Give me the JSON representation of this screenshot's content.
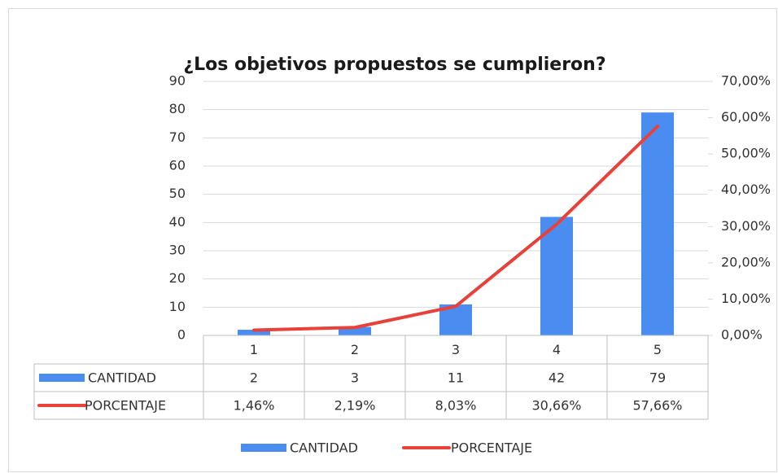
{
  "chart_data": {
    "type": "bar_line_table",
    "title": "¿Los objetivos propuestos se cumplieron?",
    "categories": [
      "1",
      "2",
      "3",
      "4",
      "5"
    ],
    "series": [
      {
        "name": "CANTIDAD",
        "type": "bar",
        "color": "#4a8cf0",
        "values": [
          2,
          3,
          11,
          42,
          79
        ]
      },
      {
        "name": "PORCENTAJE",
        "type": "line",
        "axis": "y2",
        "color": "#e8413a",
        "values": [
          1.46,
          2.19,
          8.03,
          30.66,
          57.66
        ],
        "value_labels": [
          "1,46%",
          "2,19%",
          "8,03%",
          "30,66%",
          "57,66%"
        ]
      }
    ],
    "ylim": [
      0,
      90
    ],
    "yticks": [
      0,
      10,
      20,
      30,
      40,
      50,
      60,
      70,
      80,
      90
    ],
    "y2lim": [
      0,
      70
    ],
    "y2ticks": [
      {
        "value": 0,
        "label": "0,00%"
      },
      {
        "value": 10,
        "label": "10,00%"
      },
      {
        "value": 20,
        "label": "20,00%"
      },
      {
        "value": 30,
        "label": "30,00%"
      },
      {
        "value": 40,
        "label": "40,00%"
      },
      {
        "value": 50,
        "label": "50,00%"
      },
      {
        "value": 60,
        "label": "60,00%"
      },
      {
        "value": 70,
        "label": "70,00%"
      }
    ],
    "grid": true,
    "legend": "bottom"
  }
}
